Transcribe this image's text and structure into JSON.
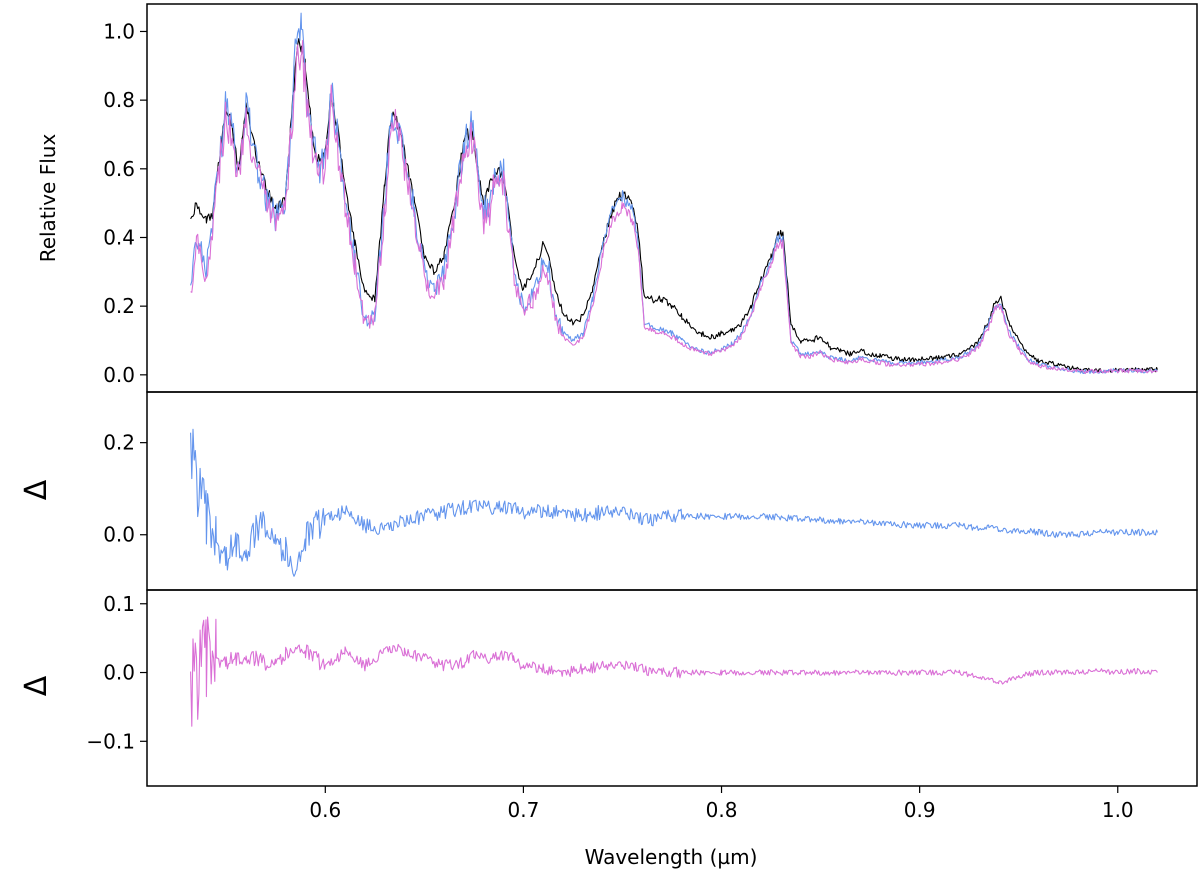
{
  "chart_data": [
    {
      "type": "line",
      "panel": "top",
      "ylabel": "Relative Flux",
      "xlim": [
        0.51,
        1.04
      ],
      "ylim": [
        -0.05,
        1.08
      ],
      "yticks": [
        0.0,
        0.2,
        0.4,
        0.6,
        0.8,
        1.0
      ],
      "ytick_labels": [
        "0.0",
        "0.2",
        "0.4",
        "0.6",
        "0.8",
        "1.0"
      ],
      "grid": false,
      "colors": {
        "series_a": "#000000",
        "series_b": "#6495ED",
        "series_c": "#DA70D6"
      },
      "x": [
        0.532,
        0.535,
        0.54,
        0.543,
        0.546,
        0.55,
        0.553,
        0.556,
        0.56,
        0.563,
        0.566,
        0.57,
        0.575,
        0.58,
        0.583,
        0.586,
        0.588,
        0.59,
        0.593,
        0.596,
        0.6,
        0.603,
        0.606,
        0.61,
        0.615,
        0.62,
        0.625,
        0.63,
        0.633,
        0.636,
        0.64,
        0.645,
        0.65,
        0.655,
        0.66,
        0.665,
        0.67,
        0.674,
        0.677,
        0.68,
        0.683,
        0.686,
        0.69,
        0.693,
        0.696,
        0.7,
        0.705,
        0.71,
        0.713,
        0.716,
        0.72,
        0.725,
        0.73,
        0.735,
        0.74,
        0.745,
        0.75,
        0.755,
        0.758,
        0.761,
        0.765,
        0.77,
        0.775,
        0.78,
        0.785,
        0.79,
        0.795,
        0.8,
        0.805,
        0.81,
        0.815,
        0.82,
        0.825,
        0.828,
        0.831,
        0.835,
        0.84,
        0.845,
        0.85,
        0.855,
        0.86,
        0.865,
        0.87,
        0.875,
        0.88,
        0.885,
        0.89,
        0.9,
        0.91,
        0.92,
        0.925,
        0.93,
        0.935,
        0.938,
        0.941,
        0.945,
        0.95,
        0.955,
        0.96,
        0.97,
        0.98,
        0.99,
        1.0,
        1.01,
        1.02
      ],
      "series": [
        {
          "values": [
            0.45,
            0.5,
            0.45,
            0.47,
            0.6,
            0.78,
            0.72,
            0.6,
            0.78,
            0.7,
            0.62,
            0.55,
            0.48,
            0.52,
            0.75,
            0.98,
            0.95,
            0.9,
            0.72,
            0.62,
            0.65,
            0.82,
            0.72,
            0.55,
            0.38,
            0.24,
            0.22,
            0.55,
            0.75,
            0.74,
            0.65,
            0.5,
            0.35,
            0.3,
            0.35,
            0.5,
            0.68,
            0.72,
            0.6,
            0.5,
            0.55,
            0.6,
            0.58,
            0.45,
            0.32,
            0.25,
            0.3,
            0.38,
            0.34,
            0.25,
            0.18,
            0.15,
            0.17,
            0.25,
            0.38,
            0.48,
            0.53,
            0.5,
            0.42,
            0.22,
            0.22,
            0.22,
            0.2,
            0.17,
            0.14,
            0.12,
            0.11,
            0.12,
            0.13,
            0.15,
            0.2,
            0.28,
            0.34,
            0.4,
            0.42,
            0.15,
            0.1,
            0.1,
            0.11,
            0.08,
            0.07,
            0.06,
            0.07,
            0.06,
            0.055,
            0.05,
            0.045,
            0.045,
            0.05,
            0.06,
            0.075,
            0.1,
            0.16,
            0.21,
            0.22,
            0.15,
            0.1,
            0.06,
            0.04,
            0.03,
            0.015,
            0.012,
            0.015,
            0.015,
            0.015
          ]
        },
        {
          "values": [
            0.25,
            0.42,
            0.3,
            0.45,
            0.6,
            0.8,
            0.7,
            0.6,
            0.8,
            0.68,
            0.6,
            0.52,
            0.45,
            0.5,
            0.75,
            1.03,
            1.0,
            0.88,
            0.7,
            0.6,
            0.62,
            0.84,
            0.7,
            0.52,
            0.33,
            0.15,
            0.18,
            0.5,
            0.76,
            0.75,
            0.62,
            0.48,
            0.3,
            0.25,
            0.3,
            0.47,
            0.68,
            0.74,
            0.58,
            0.48,
            0.5,
            0.6,
            0.58,
            0.42,
            0.27,
            0.2,
            0.24,
            0.33,
            0.3,
            0.18,
            0.12,
            0.1,
            0.12,
            0.22,
            0.38,
            0.48,
            0.52,
            0.48,
            0.38,
            0.15,
            0.14,
            0.13,
            0.12,
            0.1,
            0.08,
            0.07,
            0.065,
            0.075,
            0.09,
            0.12,
            0.18,
            0.27,
            0.33,
            0.4,
            0.4,
            0.1,
            0.06,
            0.06,
            0.07,
            0.05,
            0.045,
            0.04,
            0.05,
            0.045,
            0.04,
            0.035,
            0.035,
            0.035,
            0.04,
            0.05,
            0.065,
            0.09,
            0.15,
            0.2,
            0.21,
            0.13,
            0.08,
            0.045,
            0.03,
            0.02,
            0.01,
            0.01,
            0.012,
            0.012,
            0.012
          ]
        },
        {
          "values": [
            0.23,
            0.4,
            0.28,
            0.43,
            0.58,
            0.77,
            0.66,
            0.57,
            0.77,
            0.65,
            0.58,
            0.5,
            0.43,
            0.48,
            0.72,
            0.97,
            0.94,
            0.85,
            0.67,
            0.58,
            0.6,
            0.81,
            0.67,
            0.5,
            0.32,
            0.14,
            0.17,
            0.47,
            0.73,
            0.72,
            0.6,
            0.46,
            0.28,
            0.23,
            0.28,
            0.45,
            0.64,
            0.7,
            0.55,
            0.45,
            0.47,
            0.58,
            0.55,
            0.4,
            0.25,
            0.19,
            0.22,
            0.31,
            0.28,
            0.17,
            0.11,
            0.09,
            0.11,
            0.2,
            0.35,
            0.45,
            0.49,
            0.45,
            0.36,
            0.14,
            0.13,
            0.12,
            0.11,
            0.09,
            0.075,
            0.065,
            0.06,
            0.07,
            0.085,
            0.11,
            0.17,
            0.26,
            0.32,
            0.38,
            0.38,
            0.09,
            0.055,
            0.055,
            0.065,
            0.045,
            0.04,
            0.035,
            0.045,
            0.04,
            0.035,
            0.03,
            0.03,
            0.03,
            0.035,
            0.045,
            0.06,
            0.085,
            0.14,
            0.19,
            0.2,
            0.12,
            0.075,
            0.04,
            0.025,
            0.018,
            0.01,
            0.01,
            0.012,
            0.012,
            0.012
          ]
        }
      ]
    },
    {
      "type": "line",
      "panel": "middle",
      "ylabel": "Δ",
      "xlim": [
        0.51,
        1.04
      ],
      "ylim": [
        -0.12,
        0.31
      ],
      "yticks": [
        0.0,
        0.2
      ],
      "ytick_labels": [
        "0.0",
        "0.2"
      ],
      "grid": false,
      "colors": {
        "series": "#6495ED"
      },
      "x": [
        0.532,
        0.535,
        0.54,
        0.545,
        0.55,
        0.555,
        0.56,
        0.565,
        0.57,
        0.575,
        0.58,
        0.585,
        0.59,
        0.6,
        0.61,
        0.62,
        0.63,
        0.64,
        0.65,
        0.66,
        0.67,
        0.68,
        0.69,
        0.7,
        0.71,
        0.72,
        0.73,
        0.74,
        0.75,
        0.76,
        0.77,
        0.78,
        0.8,
        0.82,
        0.84,
        0.86,
        0.88,
        0.9,
        0.92,
        0.93,
        0.935,
        0.94,
        0.95,
        0.96,
        0.97,
        0.98,
        0.99,
        1.0,
        1.01,
        1.02
      ],
      "values": [
        0.2,
        0.12,
        0.03,
        -0.02,
        -0.05,
        -0.02,
        -0.03,
        0.01,
        0.03,
        0.0,
        -0.04,
        -0.07,
        -0.01,
        0.04,
        0.05,
        0.02,
        0.01,
        0.03,
        0.04,
        0.05,
        0.06,
        0.06,
        0.06,
        0.05,
        0.05,
        0.05,
        0.04,
        0.05,
        0.05,
        0.03,
        0.04,
        0.04,
        0.04,
        0.04,
        0.035,
        0.03,
        0.025,
        0.02,
        0.02,
        0.015,
        0.02,
        0.01,
        0.01,
        0.005,
        0.0,
        0.0,
        0.005,
        0.005,
        0.005,
        0.005
      ]
    },
    {
      "type": "line",
      "panel": "bottom",
      "ylabel": "Δ",
      "xlabel": "Wavelength (µm)",
      "xlim": [
        0.51,
        1.04
      ],
      "ylim": [
        -0.165,
        0.12
      ],
      "yticks": [
        -0.1,
        0.0,
        0.1
      ],
      "ytick_labels": [
        "−0.1",
        "0.0",
        "0.1"
      ],
      "xticks": [
        0.6,
        0.7,
        0.8,
        0.9,
        1.0
      ],
      "xtick_labels": [
        "0.6",
        "0.7",
        "0.8",
        "0.9",
        "1.0"
      ],
      "grid": false,
      "colors": {
        "series": "#DA70D6"
      },
      "x": [
        0.532,
        0.535,
        0.54,
        0.545,
        0.55,
        0.555,
        0.56,
        0.565,
        0.57,
        0.575,
        0.58,
        0.585,
        0.59,
        0.6,
        0.605,
        0.61,
        0.62,
        0.63,
        0.635,
        0.64,
        0.65,
        0.66,
        0.67,
        0.675,
        0.68,
        0.69,
        0.695,
        0.7,
        0.71,
        0.72,
        0.73,
        0.74,
        0.75,
        0.76,
        0.77,
        0.78,
        0.8,
        0.82,
        0.84,
        0.86,
        0.88,
        0.9,
        0.92,
        0.93,
        0.935,
        0.94,
        0.95,
        0.96,
        0.97,
        0.98,
        0.99,
        1.0,
        1.01,
        1.02
      ],
      "values": [
        -0.02,
        0.0,
        0.015,
        0.02,
        0.015,
        0.02,
        0.025,
        0.02,
        0.015,
        0.02,
        0.025,
        0.04,
        0.03,
        0.01,
        0.02,
        0.03,
        0.01,
        0.03,
        0.035,
        0.03,
        0.02,
        0.01,
        0.015,
        0.025,
        0.02,
        0.025,
        0.02,
        0.01,
        0.005,
        0.0,
        0.005,
        0.01,
        0.01,
        0.005,
        0.0,
        0.0,
        0.0,
        0.0,
        0.0,
        0.0,
        0.0,
        0.0,
        0.0,
        -0.005,
        -0.01,
        -0.015,
        -0.005,
        0.0,
        0.0,
        0.0,
        0.002,
        0.0,
        0.002,
        0.0
      ]
    }
  ]
}
